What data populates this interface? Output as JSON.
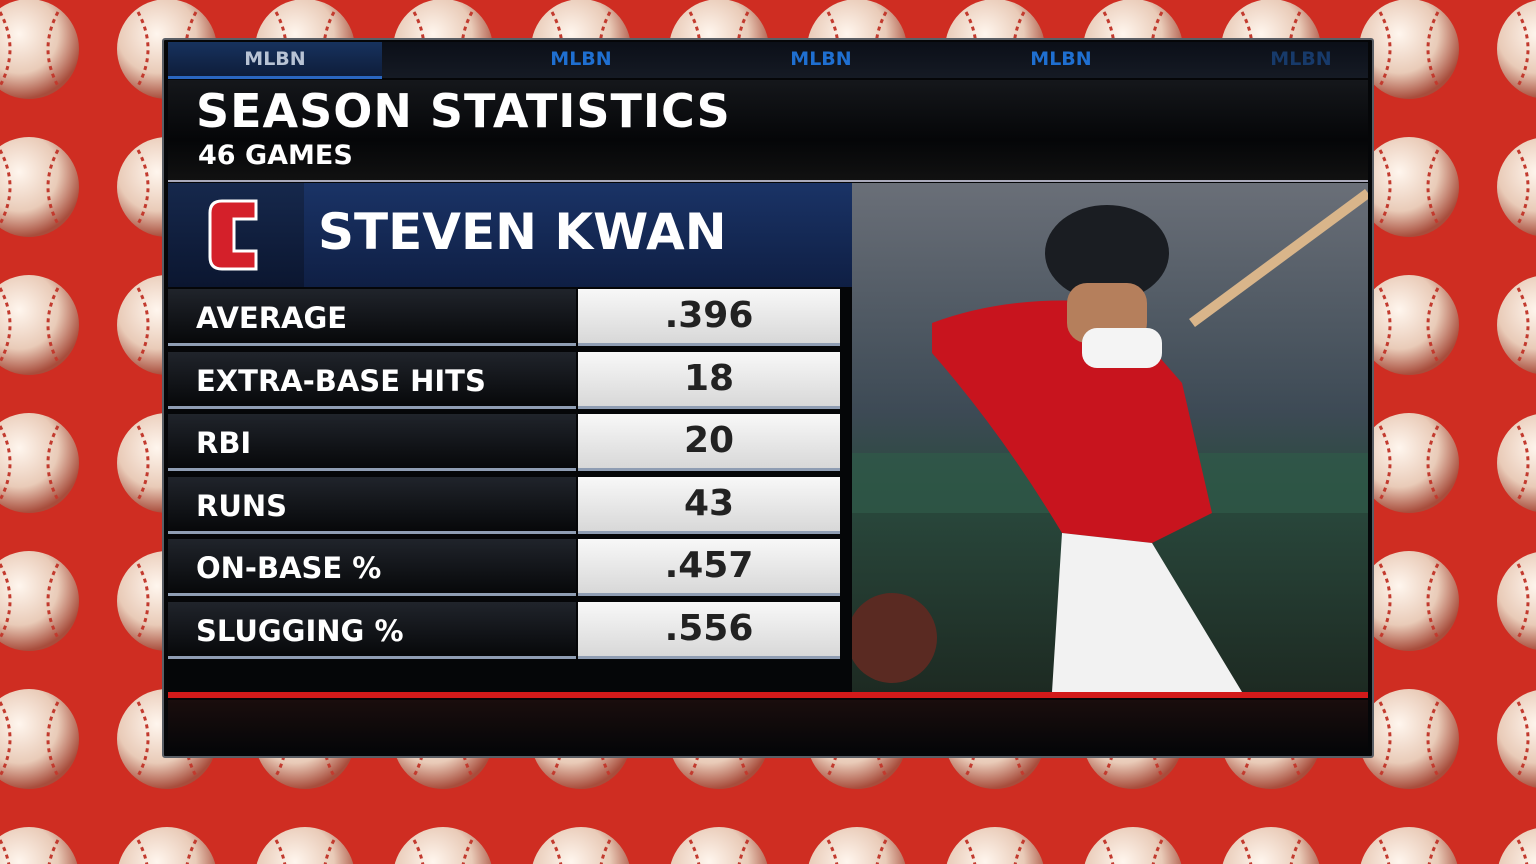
{
  "tabs": [
    "MLBN",
    "MLBN",
    "MLBN",
    "MLBN",
    "MLBN"
  ],
  "header": {
    "title": "SEASON STATISTICS",
    "subtitle": "46 GAMES"
  },
  "player": {
    "name": "STEVEN KWAN"
  },
  "table": {
    "rows": [
      [
        "AVERAGE",
        ".396"
      ],
      [
        "EXTRA-BASE HITS",
        "18"
      ],
      [
        "RBI",
        "20"
      ],
      [
        "RUNS",
        "43"
      ],
      [
        "ON-BASE %",
        ".457"
      ],
      [
        "SLUGGING %",
        ".556"
      ]
    ]
  }
}
